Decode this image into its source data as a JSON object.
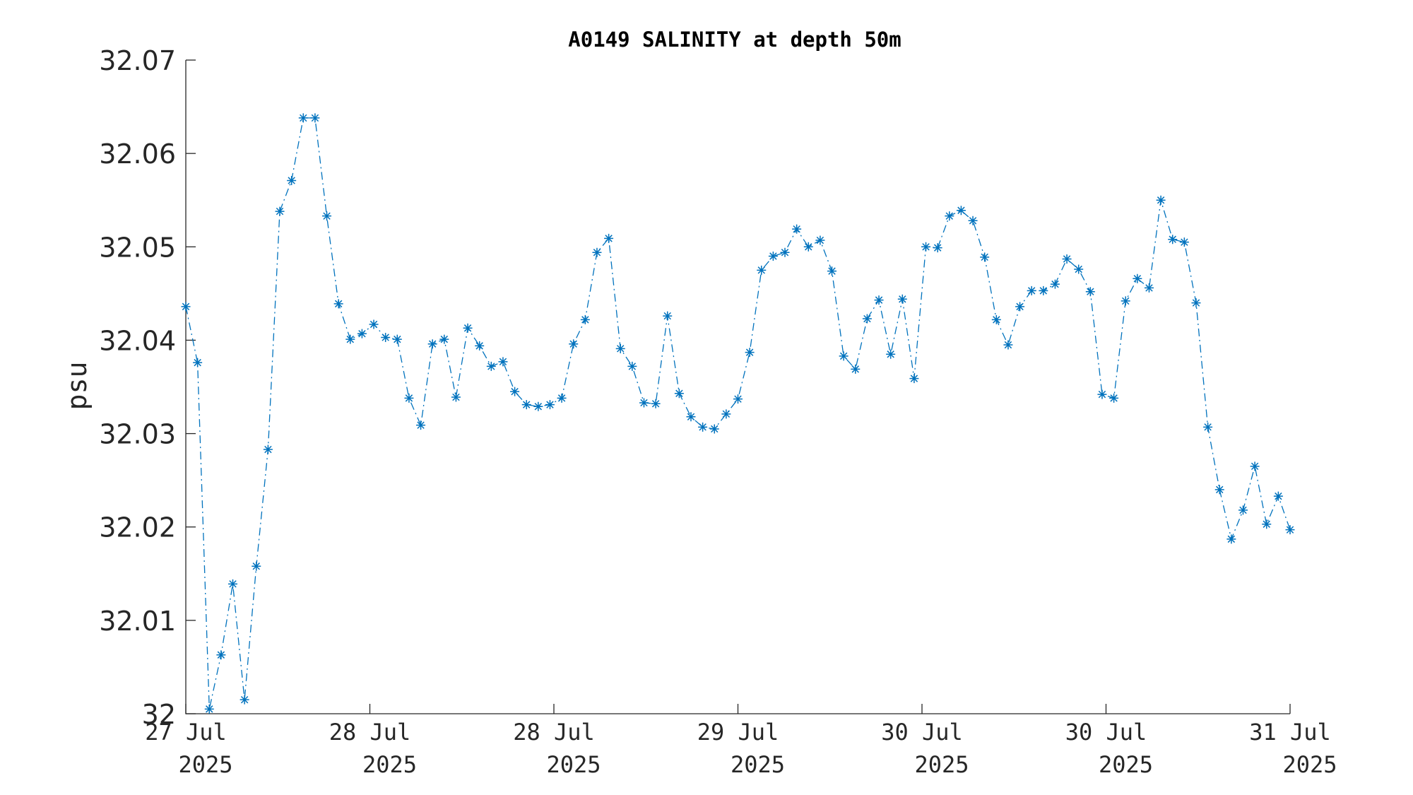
{
  "chart_data": {
    "type": "line",
    "title": "A0149 SALINITY at depth 50m",
    "xlabel": "",
    "ylabel": "psu",
    "ylim": [
      32.0,
      32.07
    ],
    "xlim": [
      "2025-07-27 00:00",
      "2025-07-31 00:00"
    ],
    "yticks": [
      "32",
      "32.01",
      "32.02",
      "32.03",
      "32.04",
      "32.05",
      "32.06",
      "32.07"
    ],
    "xticks": [
      {
        "line1": "27 Jul",
        "line2": "2025",
        "t": 0
      },
      {
        "line1": "28 Jul",
        "line2": "2025",
        "t": 0.16667
      },
      {
        "line1": "28 Jul",
        "line2": "2025",
        "t": 0.33333
      },
      {
        "line1": "29 Jul",
        "line2": "2025",
        "t": 0.5
      },
      {
        "line1": "30 Jul",
        "line2": "2025",
        "t": 0.66667
      },
      {
        "line1": "30 Jul",
        "line2": "2025",
        "t": 0.83333
      },
      {
        "line1": "31 Jul",
        "line2": "2025",
        "t": 1
      }
    ],
    "grid": false,
    "legend": "none",
    "series": [
      {
        "color": "#0072BD",
        "line_style": "dash-dot",
        "marker": "asterisk",
        "values": [
          32.0436,
          32.0376,
          32.0005,
          32.0063,
          32.0139,
          32.0015,
          32.0158,
          32.0283,
          32.0538,
          32.0571,
          32.0638,
          32.0638,
          32.0533,
          32.0439,
          32.0401,
          32.0407,
          32.0417,
          32.0403,
          32.0401,
          32.0338,
          32.0309,
          32.0396,
          32.0401,
          32.0339,
          32.0413,
          32.0394,
          32.0372,
          32.0377,
          32.0345,
          32.0331,
          32.0329,
          32.0331,
          32.0338,
          32.0396,
          32.0422,
          32.0494,
          32.0509,
          32.0391,
          32.0372,
          32.0333,
          32.0332,
          32.0426,
          32.0343,
          32.0318,
          32.0307,
          32.0305,
          32.0321,
          32.0337,
          32.0387,
          32.0475,
          32.049,
          32.0494,
          32.0519,
          32.05,
          32.0507,
          32.0474,
          32.0383,
          32.0369,
          32.0423,
          32.0443,
          32.0385,
          32.0444,
          32.0359,
          32.05,
          32.0499,
          32.0533,
          32.0539,
          32.0528,
          32.0489,
          32.0422,
          32.0395,
          32.0436,
          32.0453,
          32.0453,
          32.046,
          32.0487,
          32.0476,
          32.0452,
          32.0342,
          32.0338,
          32.0442,
          32.0466,
          32.0456,
          32.055,
          32.0508,
          32.0505,
          32.044,
          32.0307,
          32.024,
          32.0187,
          32.0218,
          32.0265,
          32.0203,
          32.0233,
          32.0197
        ]
      }
    ]
  }
}
